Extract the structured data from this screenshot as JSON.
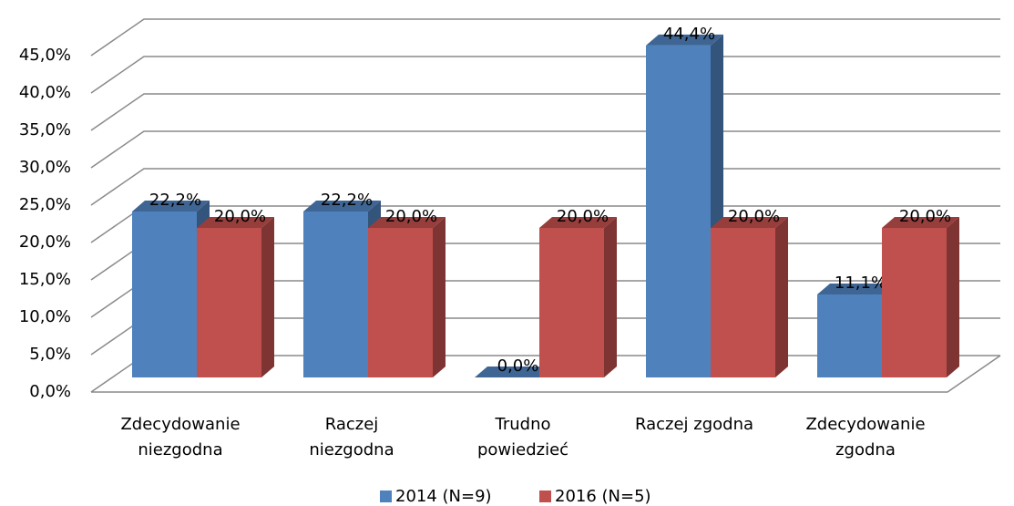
{
  "chart_data": {
    "type": "bar3d",
    "categories": [
      "Zdecydowanie\nniezgodna",
      "Raczej\nniezgodna",
      "Trudno\npowiedzieć",
      "Raczej zgodna",
      "Zdecydowanie\nzgodna"
    ],
    "series": [
      {
        "name": "2014 (N=9)",
        "color": "#4f81bd",
        "values": [
          22.2,
          22.2,
          0,
          44.4,
          11.1
        ],
        "value_labels": [
          "22,2%",
          "22,2%",
          "0,0%",
          "44,4%",
          "11,1%"
        ]
      },
      {
        "name": "2016 (N=5)",
        "color": "#c0504d",
        "values": [
          20,
          20,
          20,
          20,
          20
        ],
        "value_labels": [
          "20,0%",
          "20,0%",
          "20,0%",
          "20,0%",
          "20,0%"
        ]
      }
    ],
    "ylim": [
      0,
      45
    ],
    "yticks": [
      {
        "value": 0,
        "label": "0,0%"
      },
      {
        "value": 5,
        "label": "5,0%"
      },
      {
        "value": 10,
        "label": "10,0%"
      },
      {
        "value": 15,
        "label": "15,0%"
      },
      {
        "value": 20,
        "label": "20,0%"
      },
      {
        "value": 25,
        "label": "25,0%"
      },
      {
        "value": 30,
        "label": "30,0%"
      },
      {
        "value": 35,
        "label": "35,0%"
      },
      {
        "value": 40,
        "label": "40,0%"
      },
      {
        "value": 45,
        "label": "45,0%"
      }
    ],
    "grid": true,
    "legend": "bottom"
  }
}
